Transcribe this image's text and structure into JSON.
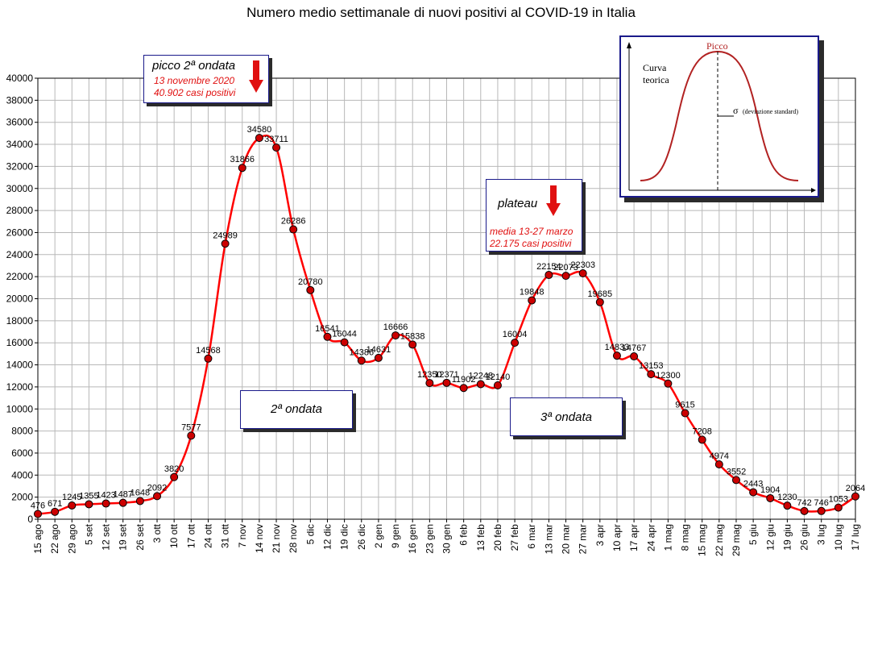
{
  "chart_data": {
    "type": "line",
    "title": "Numero medio settimanale di nuovi positivi al COVID-19 in Italia",
    "categories": [
      "15 ago",
      "22 ago",
      "29 ago",
      "5 set",
      "12 set",
      "19 set",
      "26 set",
      "3 ott",
      "10 ott",
      "17 ott",
      "24 ott",
      "31 ott",
      "7 nov",
      "14 nov",
      "21 nov",
      "28 nov",
      "5 dic",
      "12 dic",
      "19 dic",
      "26 dic",
      "2 gen",
      "9 gen",
      "16 gen",
      "23 gen",
      "30 gen",
      "6 feb",
      "13 feb",
      "20 feb",
      "27 feb",
      "6 mar",
      "13 mar",
      "20 mar",
      "27 mar",
      "3 apr",
      "10 apr",
      "17 apr",
      "24 apr",
      "1 mag",
      "8 mag",
      "15 mag",
      "22 mag",
      "29 mag",
      "5 giu",
      "12 giu",
      "19 giu",
      "26 giu",
      "3 lug",
      "10 lug",
      "17 lug"
    ],
    "series": [
      {
        "values": [
          476,
          671,
          1245,
          1355,
          1423,
          1487,
          1648,
          2092,
          3820,
          7577,
          14568,
          24989,
          31866,
          34580,
          33711,
          26286,
          20780,
          16541,
          16044,
          14386,
          14631,
          16666,
          15838,
          12350,
          12371,
          11902,
          12248,
          12140,
          16004,
          19848,
          22154,
          22073,
          22303,
          19685,
          14833,
          14767,
          13153,
          12300,
          9615,
          7208,
          4974,
          3552,
          2443,
          1904,
          1230,
          742,
          746,
          1053,
          2064
        ],
        "labels": [
          "476",
          "671",
          "1245",
          "1355",
          "1423",
          "1487",
          "1648",
          "2092",
          "3820",
          "7577",
          "14568",
          "24989",
          "31866",
          "34580",
          "33711",
          "26286",
          "20780",
          "16541",
          "16044",
          "14386",
          "14631",
          "16666",
          "15838",
          "12350",
          "12371",
          "11902",
          "12248",
          "12140",
          "16004",
          "19848",
          "22154",
          "22073",
          "22303",
          "19685",
          "14833",
          "14767",
          "13153",
          "12300",
          "9615",
          "7208",
          "4974",
          "3552",
          "2443",
          "1904",
          "1230",
          "742",
          "746",
          "1053",
          "2064"
        ],
        "color": "#ff0000",
        "marker_color": "#cc0000"
      }
    ],
    "yticks": [
      "0",
      "2000",
      "4000",
      "6000",
      "8000",
      "10000",
      "12000",
      "14000",
      "16000",
      "18000",
      "20000",
      "22000",
      "24000",
      "26000",
      "28000",
      "30000",
      "32000",
      "34000",
      "36000",
      "38000",
      "40000"
    ],
    "ylim": [
      0,
      40000
    ],
    "grid": true,
    "annotations": [
      {
        "title": "picco 2ª ondata",
        "lines": [
          "13 novembre 2020",
          "40.902 casi positivi"
        ]
      },
      {
        "title": "plateau",
        "lines": [
          "media 13-27 marzo",
          "22.175 casi positivi"
        ]
      },
      {
        "title": "2ª ondata"
      },
      {
        "title": "3ª ondata"
      }
    ],
    "inset": {
      "peak_label": "Picco",
      "curve_label_1": "Curva",
      "curve_label_2": "teorica",
      "sigma_label": "σ",
      "sigma_text": "(deviazione standard)"
    }
  }
}
